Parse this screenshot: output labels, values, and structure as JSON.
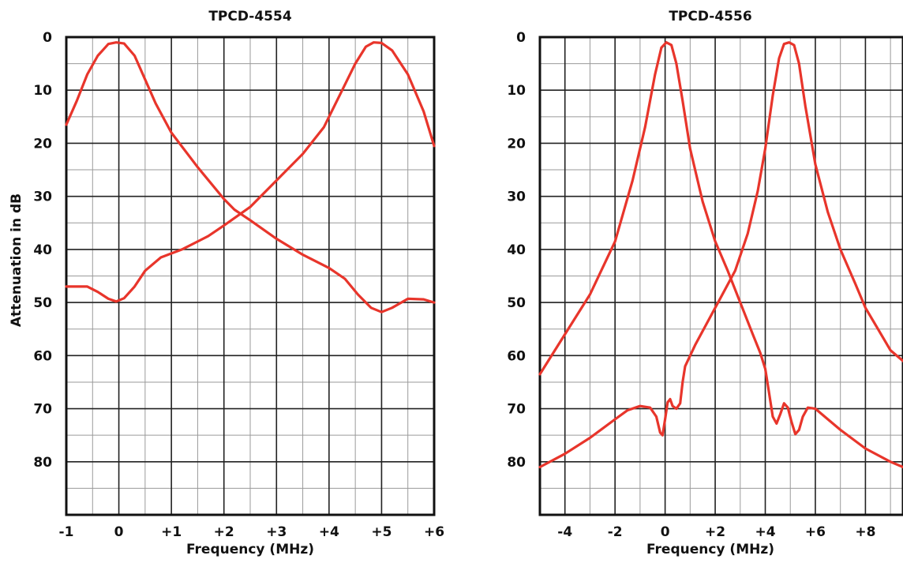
{
  "chart_data": [
    {
      "type": "line",
      "title": "TPCD-4554",
      "xlabel": "Frequency (MHz)",
      "ylabel": "Attenuation in dB",
      "xlim": [
        -1,
        6
      ],
      "ylim": [
        90,
        0
      ],
      "y_inverted": true,
      "grid": true,
      "x_ticks": [
        -1,
        0,
        1,
        2,
        3,
        4,
        5,
        6
      ],
      "x_tick_labels": [
        "-1",
        "0",
        "+1",
        "+2",
        "+3",
        "+4",
        "+5",
        "+6"
      ],
      "y_ticks": [
        0,
        10,
        20,
        30,
        40,
        50,
        60,
        70,
        80
      ],
      "y_tick_labels": [
        "0",
        "10",
        "20",
        "30",
        "40",
        "50",
        "60",
        "70",
        "80"
      ],
      "series": [
        {
          "color": "#e8352b",
          "points": [
            [
              -1,
              16.5
            ],
            [
              -0.8,
              12
            ],
            [
              -0.6,
              7
            ],
            [
              -0.4,
              3.5
            ],
            [
              -0.2,
              1.3
            ],
            [
              -0.05,
              1
            ],
            [
              0.1,
              1.2
            ],
            [
              0.3,
              3.5
            ],
            [
              0.5,
              8
            ],
            [
              0.7,
              12.5
            ],
            [
              1,
              18
            ],
            [
              1.5,
              24.5
            ],
            [
              2,
              30.5
            ],
            [
              2.2,
              32.5
            ],
            [
              2.5,
              34.5
            ],
            [
              3,
              38
            ],
            [
              3.5,
              41
            ],
            [
              4,
              43.5
            ],
            [
              4.3,
              45.5
            ],
            [
              4.55,
              48.5
            ],
            [
              4.8,
              51
            ],
            [
              5.0,
              51.8
            ],
            [
              5.2,
              51
            ],
            [
              5.5,
              49.3
            ],
            [
              5.8,
              49.4
            ],
            [
              6,
              50
            ]
          ]
        },
        {
          "color": "#e8352b",
          "points": [
            [
              -1,
              47
            ],
            [
              -0.6,
              47
            ],
            [
              -0.4,
              48
            ],
            [
              -0.2,
              49.3
            ],
            [
              -0.05,
              49.8
            ],
            [
              0.1,
              49.2
            ],
            [
              0.3,
              47
            ],
            [
              0.5,
              44
            ],
            [
              0.8,
              41.5
            ],
            [
              1.2,
              40
            ],
            [
              1.7,
              37.5
            ],
            [
              2,
              35.5
            ],
            [
              2.5,
              32
            ],
            [
              3,
              27
            ],
            [
              3.5,
              22
            ],
            [
              3.9,
              17
            ],
            [
              4.2,
              11
            ],
            [
              4.5,
              5
            ],
            [
              4.7,
              1.8
            ],
            [
              4.85,
              1
            ],
            [
              5,
              1.1
            ],
            [
              5.2,
              2.5
            ],
            [
              5.5,
              7
            ],
            [
              5.8,
              14
            ],
            [
              6,
              20.5
            ]
          ]
        }
      ]
    },
    {
      "type": "line",
      "title": "TPCD-4556",
      "xlabel": "Frequency (MHz)",
      "ylabel": "",
      "xlim": [
        -5,
        9.5
      ],
      "ylim": [
        90,
        0
      ],
      "y_inverted": true,
      "grid": true,
      "x_ticks": [
        -4,
        -2,
        0,
        2,
        4,
        6,
        8
      ],
      "x_tick_labels": [
        "-4",
        "-2",
        "0",
        "+2",
        "+4",
        "+6",
        "+8"
      ],
      "y_ticks": [
        0,
        10,
        20,
        30,
        40,
        50,
        60,
        70,
        80
      ],
      "y_tick_labels": [
        "0",
        "10",
        "20",
        "30",
        "40",
        "50",
        "60",
        "70",
        "80"
      ],
      "series": [
        {
          "color": "#e8352b",
          "points": [
            [
              -5,
              63.5
            ],
            [
              -4,
              56
            ],
            [
              -3,
              48.5
            ],
            [
              -2,
              38.5
            ],
            [
              -1.3,
              27
            ],
            [
              -0.8,
              17
            ],
            [
              -0.4,
              7
            ],
            [
              -0.15,
              2
            ],
            [
              0.05,
              1
            ],
            [
              0.25,
              1.5
            ],
            [
              0.45,
              5
            ],
            [
              0.7,
              12
            ],
            [
              1,
              21
            ],
            [
              1.5,
              31
            ],
            [
              2,
              38.5
            ],
            [
              2.5,
              44
            ],
            [
              3,
              50
            ],
            [
              3.5,
              56
            ],
            [
              3.8,
              59.5
            ],
            [
              4,
              62.5
            ],
            [
              4.15,
              67
            ],
            [
              4.3,
              71.5
            ],
            [
              4.45,
              72.8
            ],
            [
              4.6,
              71
            ],
            [
              4.75,
              69
            ],
            [
              4.9,
              69.8
            ],
            [
              5.05,
              72.5
            ],
            [
              5.2,
              74.8
            ],
            [
              5.35,
              74
            ],
            [
              5.5,
              71.5
            ],
            [
              5.7,
              69.8
            ],
            [
              6,
              70
            ],
            [
              6.5,
              72
            ],
            [
              7,
              74
            ],
            [
              8,
              77.5
            ],
            [
              9,
              80
            ],
            [
              9.5,
              81
            ]
          ]
        },
        {
          "color": "#e8352b",
          "points": [
            [
              -5,
              81
            ],
            [
              -4,
              78.5
            ],
            [
              -3,
              75.5
            ],
            [
              -2,
              72
            ],
            [
              -1.5,
              70.3
            ],
            [
              -1,
              69.5
            ],
            [
              -0.6,
              69.8
            ],
            [
              -0.35,
              71.5
            ],
            [
              -0.2,
              74.5
            ],
            [
              -0.1,
              75
            ],
            [
              0,
              72
            ],
            [
              0.1,
              68.8
            ],
            [
              0.2,
              68.2
            ],
            [
              0.3,
              69.5
            ],
            [
              0.45,
              70
            ],
            [
              0.6,
              69
            ],
            [
              0.7,
              65
            ],
            [
              0.8,
              62
            ],
            [
              1.2,
              58
            ],
            [
              2,
              51
            ],
            [
              2.8,
              44
            ],
            [
              3.3,
              37
            ],
            [
              3.7,
              29
            ],
            [
              4,
              21
            ],
            [
              4.3,
              11
            ],
            [
              4.55,
              4
            ],
            [
              4.75,
              1.3
            ],
            [
              4.95,
              1
            ],
            [
              5.15,
              1.5
            ],
            [
              5.35,
              5
            ],
            [
              5.6,
              13
            ],
            [
              6,
              24
            ],
            [
              6.5,
              33
            ],
            [
              7,
              40
            ],
            [
              7.6,
              46.5
            ],
            [
              8,
              51
            ],
            [
              8.5,
              55
            ],
            [
              9,
              59
            ],
            [
              9.5,
              61
            ]
          ]
        }
      ]
    }
  ]
}
